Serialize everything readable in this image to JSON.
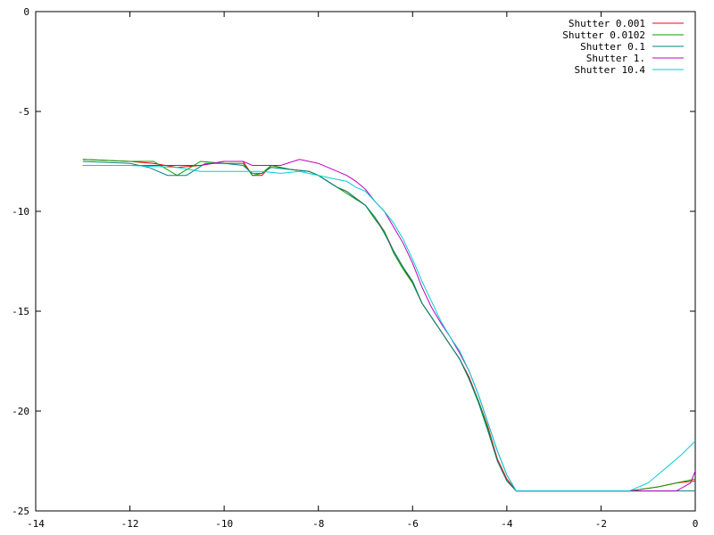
{
  "chart_data": {
    "type": "line",
    "title": "",
    "xlabel": "",
    "ylabel": "",
    "xlim": [
      -14,
      0
    ],
    "ylim": [
      -25,
      0
    ],
    "x_ticks": [
      -14,
      -12,
      -10,
      -8,
      -6,
      -4,
      -2,
      0
    ],
    "y_ticks": [
      0,
      -5,
      -10,
      -15,
      -20,
      -25
    ],
    "x_tick_labels": [
      "-14",
      "-12",
      "-10",
      "-8",
      "-6",
      "-4",
      "-2",
      "0"
    ],
    "y_tick_labels": [
      "0",
      "-5",
      "-10",
      "-15",
      "-20",
      "-25"
    ],
    "grid": false,
    "legend_position": "top-right",
    "series": [
      {
        "name": "Shutter 0.001",
        "color": "#ff0000",
        "x": [
          -13,
          -12,
          -11.5,
          -11,
          -10.5,
          -10,
          -9.6,
          -9.4,
          -9.2,
          -9.0,
          -8.6,
          -8.2,
          -8.0,
          -7.8,
          -7.6,
          -7.4,
          -7.0,
          -6.8,
          -6.6,
          -6.4,
          -6.2,
          -6.0,
          -5.8,
          -5.6,
          -5.4,
          -5.2,
          -5.0,
          -4.8,
          -4.6,
          -4.4,
          -4.2,
          -4.0,
          -3.8,
          -3.6,
          -3.4,
          -2.0,
          -1.4,
          -0.8,
          -0.4,
          0
        ],
        "y": [
          -7.4,
          -7.5,
          -7.6,
          -7.8,
          -7.7,
          -7.5,
          -7.5,
          -8.2,
          -8.2,
          -7.7,
          -7.9,
          -8.0,
          -8.2,
          -8.5,
          -8.8,
          -9.0,
          -9.7,
          -10.3,
          -11.0,
          -12.0,
          -12.8,
          -13.6,
          -14.6,
          -15.3,
          -16.0,
          -16.7,
          -17.4,
          -18.3,
          -19.5,
          -20.8,
          -22.4,
          -23.4,
          -24.0,
          -24.0,
          -24.0,
          -24.0,
          -24.0,
          -23.8,
          -23.6,
          -23.5
        ]
      },
      {
        "name": "Shutter 0.0102",
        "color": "#00a000",
        "x": [
          -13,
          -12,
          -11.5,
          -11,
          -10.5,
          -10,
          -9.6,
          -9.4,
          -9.2,
          -9.0,
          -8.6,
          -8.2,
          -8.0,
          -7.8,
          -7.6,
          -7.4,
          -7.0,
          -6.8,
          -6.6,
          -6.4,
          -6.2,
          -6.0,
          -5.8,
          -5.6,
          -5.4,
          -5.2,
          -5.0,
          -4.8,
          -4.6,
          -4.4,
          -4.2,
          -4.0,
          -3.8,
          -3.6,
          -3.4,
          -2.0,
          -1.4,
          -0.8,
          -0.4,
          0
        ],
        "y": [
          -7.4,
          -7.5,
          -7.5,
          -8.2,
          -7.5,
          -7.6,
          -7.6,
          -8.2,
          -8.1,
          -7.7,
          -7.9,
          -8.0,
          -8.2,
          -8.5,
          -8.8,
          -9.1,
          -9.7,
          -10.4,
          -11.0,
          -12.1,
          -12.9,
          -13.6,
          -14.6,
          -15.3,
          -16.0,
          -16.7,
          -17.4,
          -18.4,
          -19.5,
          -20.9,
          -22.5,
          -23.5,
          -24.0,
          -24.0,
          -24.0,
          -24.0,
          -24.0,
          -23.8,
          -23.6,
          -23.4
        ]
      },
      {
        "name": "Shutter 0.1",
        "color": "#008080",
        "x": [
          -13,
          -12,
          -11.6,
          -11.2,
          -10.8,
          -10.4,
          -10,
          -9.6,
          -9.4,
          -9.2,
          -9.0,
          -8.6,
          -8.2,
          -8.0,
          -7.8,
          -7.6,
          -7.4,
          -7.0,
          -6.8,
          -6.6,
          -6.4,
          -6.2,
          -6.0,
          -5.8,
          -5.6,
          -5.4,
          -5.2,
          -5.0,
          -4.8,
          -4.6,
          -4.4,
          -4.2,
          -4.0,
          -3.8,
          -3.6,
          -3.4,
          -0.8,
          -0.4,
          0
        ],
        "y": [
          -7.5,
          -7.6,
          -7.8,
          -8.2,
          -8.2,
          -7.6,
          -7.6,
          -7.7,
          -8.1,
          -8.1,
          -7.8,
          -7.9,
          -8.0,
          -8.2,
          -8.5,
          -8.8,
          -9.0,
          -9.7,
          -10.3,
          -11.1,
          -12.0,
          -12.8,
          -13.5,
          -14.6,
          -15.3,
          -16.0,
          -16.7,
          -17.4,
          -18.4,
          -19.6,
          -21.0,
          -22.5,
          -23.5,
          -24.0,
          -24.0,
          -24.0,
          -24.0,
          -24.0,
          -24.0
        ]
      },
      {
        "name": "Shutter 1.",
        "color": "#c000c0",
        "x": [
          -13,
          -12,
          -11,
          -10.5,
          -10,
          -9.6,
          -9.4,
          -9.2,
          -9.0,
          -8.8,
          -8.4,
          -8.0,
          -7.8,
          -7.6,
          -7.4,
          -7.2,
          -7.0,
          -6.8,
          -6.6,
          -6.4,
          -6.2,
          -6.0,
          -5.8,
          -5.6,
          -5.4,
          -5.2,
          -5.0,
          -4.8,
          -4.6,
          -4.4,
          -4.2,
          -4.0,
          -3.8,
          -3.6,
          -3.4,
          -2.0,
          -1.2,
          -0.8,
          -0.4,
          -0.1,
          0
        ],
        "y": [
          -7.7,
          -7.7,
          -7.7,
          -7.7,
          -7.5,
          -7.5,
          -7.7,
          -7.7,
          -7.7,
          -7.7,
          -7.4,
          -7.6,
          -7.8,
          -8.0,
          -8.2,
          -8.5,
          -8.9,
          -9.5,
          -10.0,
          -10.8,
          -11.6,
          -12.6,
          -13.8,
          -14.8,
          -15.6,
          -16.3,
          -17.1,
          -18.0,
          -19.2,
          -20.6,
          -22.0,
          -23.2,
          -24.0,
          -24.0,
          -24.0,
          -24.0,
          -24.0,
          -24.0,
          -24.0,
          -23.6,
          -23.0
        ]
      },
      {
        "name": "Shutter 10.4",
        "color": "#00d0d0",
        "x": [
          -13,
          -12,
          -11,
          -10.5,
          -10,
          -9.6,
          -9.2,
          -8.8,
          -8.4,
          -8.0,
          -7.6,
          -7.4,
          -7.2,
          -7.0,
          -6.8,
          -6.6,
          -6.4,
          -6.2,
          -6.0,
          -5.8,
          -5.6,
          -5.4,
          -5.2,
          -5.0,
          -4.8,
          -4.6,
          -4.4,
          -4.2,
          -4.0,
          -3.8,
          -3.6,
          -2.0,
          -1.4,
          -1.0,
          -0.6,
          -0.3,
          0
        ],
        "y": [
          -7.7,
          -7.7,
          -7.8,
          -8.0,
          -8.0,
          -8.0,
          -8.0,
          -8.1,
          -8.0,
          -8.2,
          -8.4,
          -8.5,
          -8.8,
          -9.0,
          -9.5,
          -10.0,
          -10.6,
          -11.4,
          -12.4,
          -13.5,
          -14.5,
          -15.5,
          -16.3,
          -17.0,
          -18.0,
          -19.2,
          -20.6,
          -22.0,
          -23.2,
          -24.0,
          -24.0,
          -24.0,
          -24.0,
          -23.6,
          -22.8,
          -22.2,
          -21.5
        ]
      }
    ]
  }
}
